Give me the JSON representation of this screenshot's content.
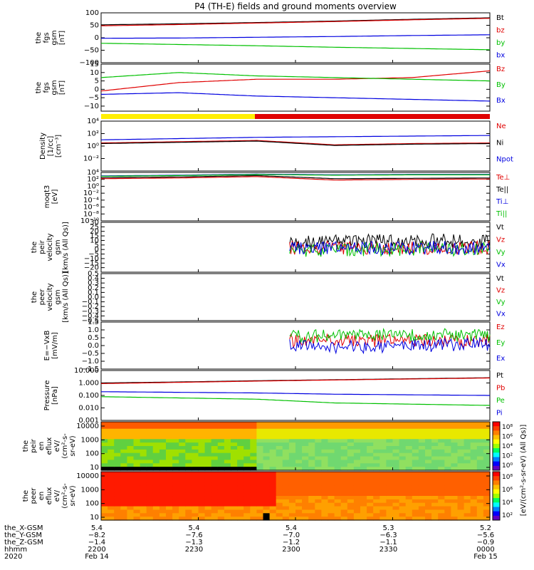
{
  "title": "P4 (TH-E) fields and ground moments overview",
  "colors": {
    "black": "#000000",
    "red": "#e00000",
    "green": "#00c000",
    "blue": "#0000e0",
    "yellow": "#ffee00"
  },
  "chart_data": [
    {
      "id": "fgs-gsm",
      "type": "line",
      "ylabel": [
        "the",
        "fgs",
        "gsm",
        "[nT]"
      ],
      "ylim": [
        -100,
        100
      ],
      "yticks": [
        "100",
        "50",
        "0",
        "−50",
        "−100"
      ],
      "tickvals": [
        100,
        50,
        0,
        -50,
        -100
      ],
      "series": [
        {
          "name": "Bt",
          "color": "#000000",
          "values": [
            52,
            56,
            61,
            67,
            74,
            80
          ]
        },
        {
          "name": "bz",
          "color": "#e00000",
          "values": [
            48,
            53,
            59,
            65,
            72,
            78
          ]
        },
        {
          "name": "by",
          "color": "#00c000",
          "values": [
            -22,
            -27,
            -32,
            -38,
            -43,
            -48
          ]
        },
        {
          "name": "bx",
          "color": "#0000e0",
          "values": [
            -2,
            -1,
            2,
            5,
            9,
            12
          ]
        }
      ]
    },
    {
      "id": "fgs-gsm-zoom",
      "type": "line",
      "ylabel": [
        "the",
        "fgs",
        "gsm",
        "[nT]"
      ],
      "ylim": [
        -13,
        15
      ],
      "yticks": [
        "15",
        "10",
        "5",
        "0",
        "−5",
        "−10"
      ],
      "tickvals": [
        15,
        10,
        5,
        0,
        -5,
        -10
      ],
      "series": [
        {
          "name": "Bz",
          "color": "#e00000",
          "values": [
            -1,
            4,
            6,
            6,
            7,
            11
          ]
        },
        {
          "name": "By",
          "color": "#00c000",
          "values": [
            7,
            10,
            8,
            7,
            6,
            5
          ]
        },
        {
          "name": "Bx",
          "color": "#0000e0",
          "values": [
            -3,
            -2,
            -4,
            -5,
            -6,
            -7
          ]
        }
      ]
    },
    {
      "id": "density",
      "type": "line",
      "log": true,
      "ylabel": [
        "Density",
        "[1/cc]",
        "[cm⁻³]"
      ],
      "ylim": [
        -4,
        4
      ],
      "yticks": [
        "10⁴",
        "10²",
        "10⁰",
        "10⁻²"
      ],
      "tickvals": [
        4,
        2,
        0,
        -2
      ],
      "series": [
        {
          "name": "Ne",
          "color": "#e00000",
          "values": [
            0.5,
            0.7,
            0.9,
            0.2,
            0.4,
            0.5
          ]
        },
        {
          "name": "Ni",
          "color": "#000000",
          "values": [
            0.4,
            0.6,
            0.8,
            0.1,
            0.3,
            0.4
          ]
        },
        {
          "name": "Npot",
          "color": "#0000e0",
          "values": [
            1.0,
            1.2,
            1.4,
            1.5,
            1.6,
            1.7
          ]
        }
      ]
    },
    {
      "id": "temperature",
      "type": "line",
      "log": true,
      "ylabel": [
        "moqt3",
        "[eV]"
      ],
      "ylim": [
        -10,
        4
      ],
      "yticks": [
        "10⁴",
        "10²",
        "10⁰",
        "10⁻²",
        "10⁻⁴",
        "10⁻⁶",
        "10⁻⁸",
        "10⁻¹⁰"
      ],
      "tickvals": [
        4,
        2,
        0,
        -2,
        -4,
        -6,
        -8,
        -10
      ],
      "series": [
        {
          "name": "Te⊥",
          "color": "#e00000",
          "values": [
            2.2,
            2.4,
            2.8,
            1.8,
            2.0,
            2.1
          ]
        },
        {
          "name": "Te||",
          "color": "#000000",
          "values": [
            2.5,
            2.7,
            3.1,
            2.2,
            2.3,
            2.4
          ]
        },
        {
          "name": "Ti⊥",
          "color": "#0000e0",
          "values": [
            3.0,
            3.2,
            3.5,
            3.3,
            3.4,
            3.4
          ]
        },
        {
          "name": "Ti||",
          "color": "#00c000",
          "values": [
            2.9,
            3.1,
            3.4,
            3.2,
            3.3,
            3.3
          ]
        }
      ]
    },
    {
      "id": "peir-velocity",
      "type": "line",
      "ylabel": [
        "the",
        "peir",
        "velocity",
        "gsm",
        "[km/s (All Qs)]"
      ],
      "ylim": [
        -25,
        30
      ],
      "yticks": [
        "30",
        "25",
        "20",
        "15",
        "10",
        "5",
        "0",
        "−5",
        "−10",
        "−15",
        "−20"
      ],
      "tickvals": [
        30,
        25,
        20,
        15,
        10,
        5,
        0,
        -5,
        -10,
        -15,
        -20
      ],
      "xstart": 0.485,
      "series": [
        {
          "name": "Vt",
          "color": "#000000",
          "values": [
            8,
            9,
            10,
            9
          ]
        },
        {
          "name": "Vz",
          "color": "#e00000",
          "values": [
            2,
            2,
            1,
            2
          ]
        },
        {
          "name": "Vy",
          "color": "#00c000",
          "values": [
            -1,
            0,
            1,
            0
          ]
        },
        {
          "name": "Vx",
          "color": "#0000e0",
          "values": [
            1,
            1,
            2,
            1
          ]
        }
      ]
    },
    {
      "id": "peer-velocity",
      "type": "line",
      "ylabel": [
        "the",
        "peer",
        "velocity",
        "gsm",
        "[km/s (All Qs)]"
      ],
      "ylim": [
        -0.5,
        0.5
      ],
      "yticks": [
        "0.5",
        "0.4",
        "0.3",
        "0.2",
        "0.1",
        "0.0",
        "−0.1",
        "−0.2",
        "−0.3",
        "−0.4",
        "−0.5"
      ],
      "tickvals": [
        0.5,
        0.4,
        0.3,
        0.2,
        0.1,
        0.0,
        -0.1,
        -0.2,
        -0.3,
        -0.4,
        -0.5
      ],
      "series": [
        {
          "name": "Vt",
          "color": "#000000",
          "values": []
        },
        {
          "name": "Vz",
          "color": "#e00000",
          "values": []
        },
        {
          "name": "Vy",
          "color": "#00c000",
          "values": []
        },
        {
          "name": "Vx",
          "color": "#0000e0",
          "values": []
        }
      ]
    },
    {
      "id": "efield",
      "type": "line",
      "ylabel": [
        "E=−VxB",
        "[mV/m]"
      ],
      "ylim": [
        -1.5,
        1.5
      ],
      "yticks": [
        "1.5",
        "1.0",
        "0.5",
        "0.0",
        "−0.5",
        "−1.0",
        "−1.5"
      ],
      "tickvals": [
        1.5,
        1.0,
        0.5,
        0.0,
        -0.5,
        -1.0,
        -1.5
      ],
      "xstart": 0.485,
      "series": [
        {
          "name": "Ez",
          "color": "#e00000",
          "values": [
            0.3,
            0.3,
            0.3,
            0.3
          ]
        },
        {
          "name": "Ey",
          "color": "#00c000",
          "values": [
            0.6,
            0.6,
            0.7,
            0.6
          ]
        },
        {
          "name": "Ex",
          "color": "#0000e0",
          "values": [
            0.0,
            -0.1,
            0.0,
            0.1
          ]
        }
      ]
    },
    {
      "id": "pressure",
      "type": "line",
      "log": true,
      "ylabel": [
        "Pressure",
        "[nPa]"
      ],
      "ylim": [
        -3,
        1
      ],
      "yticks": [
        "10.000",
        "1.000",
        "0.100",
        "0.010",
        "0.001"
      ],
      "tickvals": [
        1,
        0,
        -1,
        -2,
        -3
      ],
      "series": [
        {
          "name": "Pt",
          "color": "#000000",
          "values": [
            0.0,
            0.08,
            0.18,
            0.26,
            0.34,
            0.42
          ]
        },
        {
          "name": "Pb",
          "color": "#e00000",
          "values": [
            -0.05,
            0.05,
            0.15,
            0.24,
            0.32,
            0.4
          ]
        },
        {
          "name": "Pe",
          "color": "#00c000",
          "values": [
            -1.1,
            -1.2,
            -1.3,
            -1.6,
            -1.7,
            -1.8
          ]
        },
        {
          "name": "Pi",
          "color": "#0000e0",
          "values": [
            -0.7,
            -0.75,
            -0.8,
            -0.9,
            -0.95,
            -1.0
          ]
        }
      ]
    },
    {
      "id": "peir-eflux",
      "type": "heatmap",
      "ylabel": [
        "the",
        "peir",
        "en",
        "eflux",
        "eV/",
        "(cm²-s-",
        "sr-eV)"
      ],
      "yticks": [
        "10000",
        "1000",
        "100",
        "10"
      ],
      "colorbar_ticks": [
        "10⁸",
        "10⁶",
        "10⁴",
        "10²",
        "10⁰"
      ]
    },
    {
      "id": "peer-eflux",
      "type": "heatmap",
      "ylabel": [
        "the",
        "peer",
        "en",
        "eflux",
        "eV/",
        "(cm²-s-",
        "sr-eV)"
      ],
      "yticks": [
        "10000",
        "1000",
        "100",
        "10"
      ],
      "colorbar_ticks": [
        "10⁸",
        "10⁶",
        "10⁴",
        "10²"
      ]
    }
  ],
  "colorbar_label": "[eV/(cm²-s-sr-eV) (All Qs)]",
  "xaxis": {
    "rows": [
      {
        "name": "the_X-GSM",
        "values": [
          "5.4",
          "5.4",
          "5.4",
          "5.3",
          "5.2"
        ]
      },
      {
        "name": "the_Y-GSM",
        "values": [
          "−8.2",
          "−7.6",
          "−7.0",
          "−6.3",
          "−5.6"
        ]
      },
      {
        "name": "the_Z-GSM",
        "values": [
          "−1.4",
          "−1.3",
          "−1.2",
          "−1.1",
          "−0.9"
        ]
      },
      {
        "name": "hhmm",
        "values": [
          "2200",
          "2230",
          "2300",
          "2330",
          "0000"
        ]
      },
      {
        "name": "2020",
        "values": [
          "Feb 14",
          "",
          "",
          "",
          "Feb 15"
        ]
      }
    ]
  }
}
